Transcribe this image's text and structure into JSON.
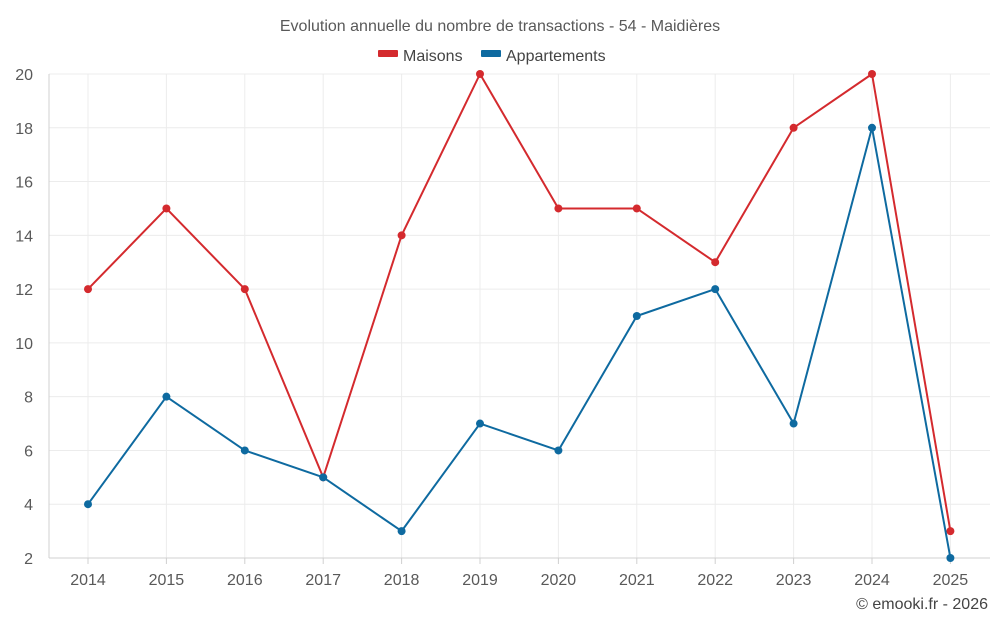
{
  "chart_data": {
    "type": "line",
    "title": "Evolution annuelle du nombre de transactions - 54 - Maidières",
    "categories": [
      "2014",
      "2015",
      "2016",
      "2017",
      "2018",
      "2019",
      "2020",
      "2021",
      "2022",
      "2023",
      "2024",
      "2025"
    ],
    "series": [
      {
        "name": "Maisons",
        "color": "#d42a2e",
        "values": [
          12,
          15,
          12,
          5,
          14,
          20,
          15,
          15,
          13,
          18,
          20,
          3
        ]
      },
      {
        "name": "Appartements",
        "color": "#0e6aa0",
        "values": [
          4,
          8,
          6,
          5,
          3,
          7,
          6,
          11,
          12,
          7,
          18,
          2
        ]
      }
    ],
    "yticks": [
      "2",
      "4",
      "6",
      "8",
      "10",
      "12",
      "14",
      "16",
      "18",
      "20"
    ],
    "ylim": [
      2,
      20
    ],
    "xlabel": "",
    "ylabel": "",
    "grid": true,
    "legend_position": "top-center"
  },
  "credit": "© emooki.fr - 2026"
}
